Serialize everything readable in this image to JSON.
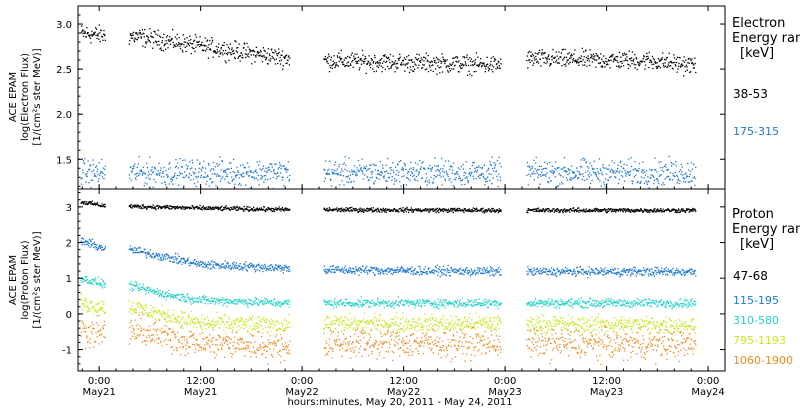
{
  "colors": {
    "black": "#000000",
    "blue": "#1e78d2",
    "cyan": "#23d2c8",
    "yellow": "#c8e61e",
    "orange": "#eb8c1e"
  },
  "xaxis": {
    "title": "hours:minutes, May 20, 2011 - May 24, 2011",
    "ticks": [
      {
        "t": 0,
        "top": "0:00",
        "bottom": "May21"
      },
      {
        "t": 12,
        "top": "12:00",
        "bottom": "May21"
      },
      {
        "t": 24,
        "top": "0:00",
        "bottom": "May22"
      },
      {
        "t": 36,
        "top": "12:00",
        "bottom": "May22"
      },
      {
        "t": 48,
        "top": "0:00",
        "bottom": "May23"
      },
      {
        "t": 60,
        "top": "12:00",
        "bottom": "May23"
      },
      {
        "t": 72,
        "top": "0:00",
        "bottom": "May24"
      }
    ]
  },
  "electron_panel": {
    "ylabel": [
      "ACE EPAM",
      "log(Electron Flux)",
      "[1/(cm²s ster MeV)]"
    ],
    "yticks": [
      "1.5",
      "2.0",
      "2.5",
      "3.0"
    ],
    "legend_title": [
      "Electron",
      "Energy ran",
      "[keV]"
    ],
    "legend": [
      {
        "label": "38-53",
        "colorKey": "black"
      },
      {
        "label": "175-315",
        "colorKey": "blue"
      }
    ]
  },
  "proton_panel": {
    "ylabel": [
      "ACE EPAM",
      "log(Proton Flux)",
      "[1/(cm²s ster MeV)]"
    ],
    "yticks": [
      "-1",
      "0",
      "1",
      "2",
      "3"
    ],
    "legend_title": [
      "Proton",
      "Energy ran",
      "[keV]"
    ],
    "legend": [
      {
        "label": "47-68",
        "colorKey": "black"
      },
      {
        "label": "115-195",
        "colorKey": "blue"
      },
      {
        "label": "310-580",
        "colorKey": "cyan"
      },
      {
        "label": "795-1193",
        "colorKey": "yellow"
      },
      {
        "label": "1060-1900",
        "colorKey": "orange"
      }
    ]
  },
  "chart_data": [
    {
      "type": "scatter",
      "panel": "electron",
      "x_unit": "hours since 2011-05-21 00:00",
      "xlim": [
        -2.5,
        74
      ],
      "ylim": [
        1.17,
        3.2
      ],
      "segments": [
        [
          -2.2,
          0.7
        ],
        [
          3.5,
          22.5
        ],
        [
          26.5,
          47.5
        ],
        [
          50.5,
          70.5
        ]
      ],
      "series": [
        {
          "colorKey": "black",
          "points": [
            [
              -2,
              2.9
            ],
            [
              0.5,
              2.88
            ],
            [
              4,
              2.87
            ],
            [
              8,
              2.82
            ],
            [
              12,
              2.76
            ],
            [
              18,
              2.68
            ],
            [
              22,
              2.63
            ],
            [
              27,
              2.6
            ],
            [
              35,
              2.58
            ],
            [
              40,
              2.57
            ],
            [
              47,
              2.55
            ],
            [
              51,
              2.62
            ],
            [
              58,
              2.61
            ],
            [
              65,
              2.6
            ],
            [
              70,
              2.55
            ]
          ],
          "noise": 0.05
        },
        {
          "colorKey": "blue",
          "points": [
            [
              -2,
              1.36
            ],
            [
              70,
              1.36
            ]
          ],
          "noise": 0.07
        }
      ]
    },
    {
      "type": "scatter",
      "panel": "proton",
      "x_unit": "hours since 2011-05-21 00:00",
      "xlim": [
        -2.5,
        74
      ],
      "ylim": [
        -1.6,
        3.5
      ],
      "segments": [
        [
          -2.2,
          0.7
        ],
        [
          3.5,
          22.5
        ],
        [
          26.5,
          47.5
        ],
        [
          50.5,
          70.5
        ]
      ],
      "series": [
        {
          "colorKey": "black",
          "points": [
            [
              -2,
              3.15
            ],
            [
              0.5,
              3.05
            ],
            [
              4,
              3.03
            ],
            [
              12,
              2.98
            ],
            [
              22,
              2.94
            ],
            [
              47,
              2.92
            ],
            [
              70,
              2.92
            ]
          ],
          "noise": 0.03
        },
        {
          "colorKey": "blue",
          "points": [
            [
              -2,
              2.05
            ],
            [
              0.5,
              1.85
            ],
            [
              4,
              1.8
            ],
            [
              8,
              1.6
            ],
            [
              12,
              1.4
            ],
            [
              22,
              1.3
            ],
            [
              27,
              1.25
            ],
            [
              47,
              1.2
            ],
            [
              70,
              1.2
            ]
          ],
          "noise": 0.06
        },
        {
          "colorKey": "cyan",
          "points": [
            [
              -2,
              1.0
            ],
            [
              0.5,
              0.85
            ],
            [
              4,
              0.78
            ],
            [
              8,
              0.55
            ],
            [
              12,
              0.4
            ],
            [
              22,
              0.32
            ],
            [
              70,
              0.32
            ]
          ],
          "noise": 0.06
        },
        {
          "colorKey": "yellow",
          "points": [
            [
              -2,
              0.3
            ],
            [
              0.5,
              0.2
            ],
            [
              4,
              0.2
            ],
            [
              8,
              -0.05
            ],
            [
              12,
              -0.25
            ],
            [
              22,
              -0.3
            ],
            [
              27,
              -0.25
            ],
            [
              47,
              -0.25
            ],
            [
              70,
              -0.3
            ]
          ],
          "noise": 0.12
        },
        {
          "colorKey": "orange",
          "points": [
            [
              -2,
              -0.45
            ],
            [
              0.5,
              -0.55
            ],
            [
              4,
              -0.45
            ],
            [
              12,
              -0.8
            ],
            [
              22,
              -0.9
            ],
            [
              27,
              -0.8
            ],
            [
              47,
              -0.8
            ],
            [
              70,
              -0.85
            ]
          ],
          "noise": 0.2
        }
      ]
    }
  ]
}
